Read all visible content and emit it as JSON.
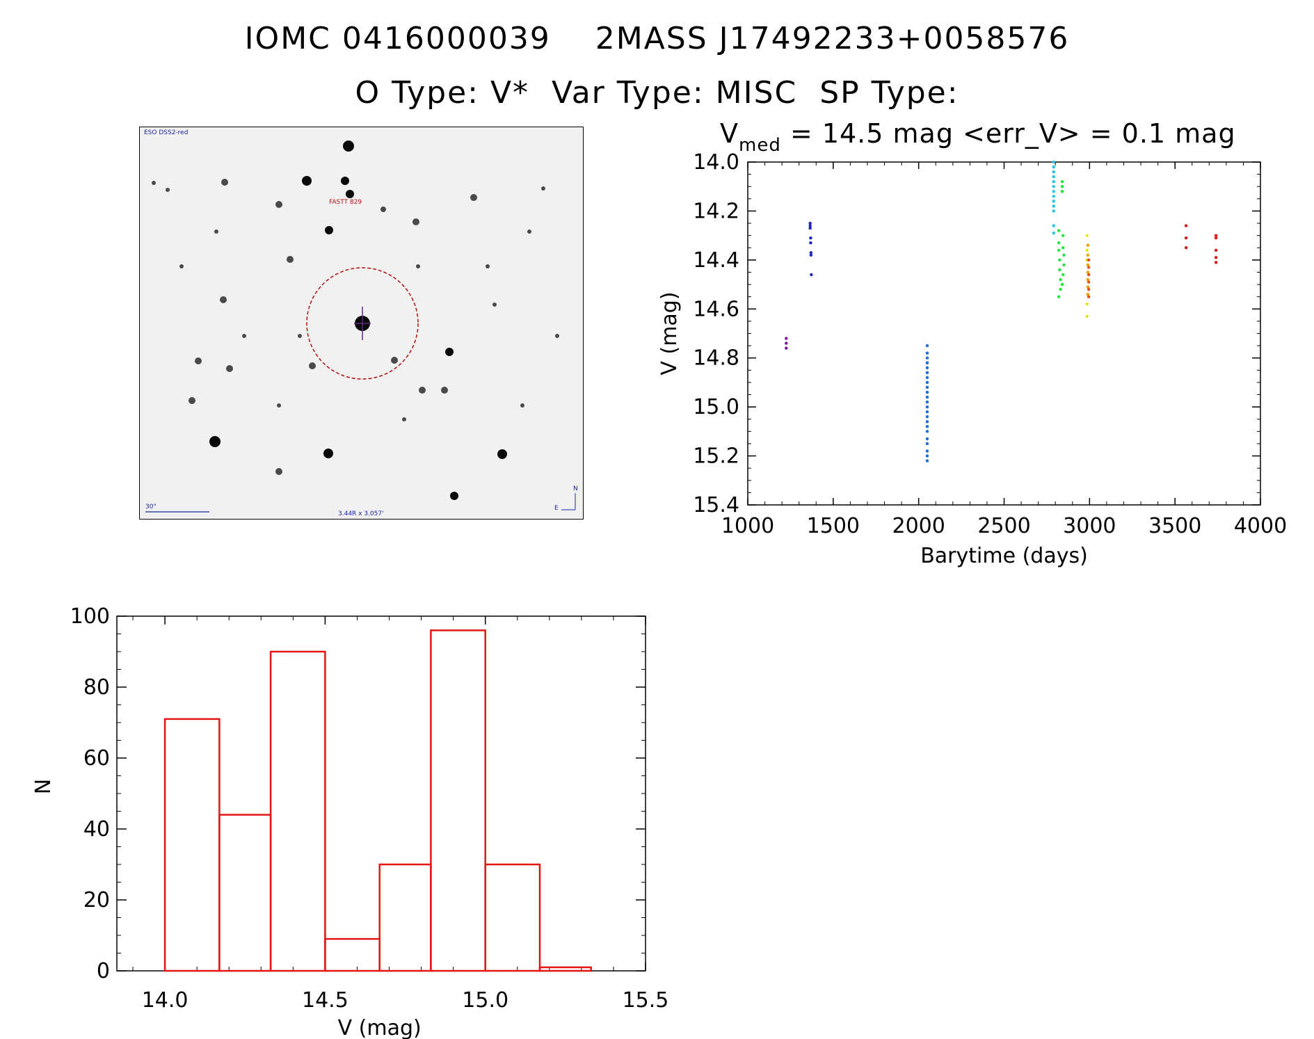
{
  "header": {
    "line1": "IOMC 0416000039    2MASS J17492233+0058576",
    "line2": "O Type: V*  Var Type: MISC  SP Type:"
  },
  "finder": {
    "survey_label": "ESO DSS2-red",
    "target_label": "FASTT 829",
    "scale_label": "30\"",
    "coords_label": "3.44R x 3.057'",
    "north_label": "N",
    "east_label": "E"
  },
  "lightcurve_header": {
    "v_prefix": "V",
    "v_subscript": "med",
    "v_rest": " = 14.5 mag <err_V> = 0.1 mag"
  },
  "chart_data": [
    {
      "type": "scatter",
      "xlabel": "Barytime (days)",
      "ylabel": "V (mag)",
      "xlim": [
        1000,
        4000
      ],
      "ylim": [
        15.4,
        14.0
      ],
      "y_inverted": true,
      "xticks": [
        "1000",
        "1500",
        "2000",
        "2500",
        "3000",
        "3500",
        "4000"
      ],
      "yticks": [
        "14.0",
        "14.2",
        "14.4",
        "14.6",
        "14.8",
        "15.0",
        "15.2",
        "15.4"
      ],
      "groups": [
        {
          "color": "#7a1a9a",
          "points": [
            [
              1225,
              14.72
            ],
            [
              1225,
              14.74
            ],
            [
              1225,
              14.76
            ]
          ]
        },
        {
          "color": "#1a24c8",
          "points": [
            [
              1365,
              14.25
            ],
            [
              1365,
              14.26
            ],
            [
              1365,
              14.27
            ],
            [
              1368,
              14.31
            ],
            [
              1368,
              14.33
            ],
            [
              1370,
              14.37
            ],
            [
              1370,
              14.38
            ],
            [
              1372,
              14.46
            ]
          ]
        },
        {
          "color": "#1a6ed8",
          "points": [
            [
              2050,
              14.75
            ],
            [
              2050,
              14.78
            ],
            [
              2050,
              14.8
            ],
            [
              2050,
              14.82
            ],
            [
              2050,
              14.84
            ],
            [
              2050,
              14.86
            ],
            [
              2050,
              14.88
            ],
            [
              2050,
              14.9
            ],
            [
              2050,
              14.92
            ],
            [
              2050,
              14.94
            ],
            [
              2050,
              14.96
            ],
            [
              2050,
              14.98
            ],
            [
              2050,
              15.0
            ],
            [
              2050,
              15.02
            ],
            [
              2050,
              15.04
            ],
            [
              2050,
              15.06
            ],
            [
              2050,
              15.08
            ],
            [
              2050,
              15.1
            ],
            [
              2050,
              15.13
            ],
            [
              2050,
              15.15
            ],
            [
              2050,
              15.18
            ],
            [
              2050,
              15.2
            ],
            [
              2050,
              15.22
            ]
          ]
        },
        {
          "color": "#1ec8e6",
          "points": [
            [
              2790,
              14.0
            ],
            [
              2790,
              14.02
            ],
            [
              2790,
              14.04
            ],
            [
              2790,
              14.06
            ],
            [
              2790,
              14.08
            ],
            [
              2790,
              14.1
            ],
            [
              2790,
              14.12
            ],
            [
              2790,
              14.14
            ],
            [
              2790,
              14.16
            ],
            [
              2790,
              14.18
            ],
            [
              2790,
              14.2
            ],
            [
              2790,
              14.26
            ],
            [
              2790,
              14.29
            ]
          ]
        },
        {
          "color": "#1ee63c",
          "points": [
            [
              2840,
              14.08
            ],
            [
              2840,
              14.1
            ],
            [
              2840,
              14.12
            ],
            [
              2820,
              14.28
            ],
            [
              2820,
              14.33
            ],
            [
              2820,
              14.36
            ],
            [
              2825,
              14.4
            ],
            [
              2825,
              14.44
            ],
            [
              2830,
              14.48
            ],
            [
              2830,
              14.52
            ],
            [
              2820,
              14.55
            ],
            [
              2845,
              14.3
            ],
            [
              2845,
              14.35
            ],
            [
              2850,
              14.38
            ],
            [
              2850,
              14.42
            ],
            [
              2845,
              14.46
            ],
            [
              2840,
              14.5
            ]
          ]
        },
        {
          "color": "#e6e614",
          "points": [
            [
              2985,
              14.3
            ],
            [
              2985,
              14.36
            ],
            [
              2985,
              14.4
            ],
            [
              2985,
              14.58
            ],
            [
              2985,
              14.63
            ]
          ]
        },
        {
          "color": "#f0a000",
          "points": [
            [
              2990,
              14.34
            ],
            [
              2990,
              14.38
            ],
            [
              2990,
              14.42
            ],
            [
              2990,
              14.45
            ],
            [
              2990,
              14.48
            ],
            [
              2990,
              14.51
            ],
            [
              2990,
              14.54
            ]
          ]
        },
        {
          "color": "#e65014",
          "points": [
            [
              2995,
              14.4
            ],
            [
              2995,
              14.43
            ],
            [
              2995,
              14.46
            ],
            [
              2995,
              14.49
            ],
            [
              2995,
              14.52
            ],
            [
              2995,
              14.55
            ]
          ]
        },
        {
          "color": "#e61414",
          "points": [
            [
              3565,
              14.26
            ],
            [
              3565,
              14.31
            ],
            [
              3565,
              14.35
            ],
            [
              3740,
              14.3
            ],
            [
              3740,
              14.31
            ],
            [
              3740,
              14.36
            ],
            [
              3740,
              14.39
            ],
            [
              3740,
              14.41
            ]
          ]
        }
      ]
    },
    {
      "type": "bar",
      "xlabel": "V (mag)",
      "ylabel": "N",
      "xlim": [
        13.85,
        15.5
      ],
      "ylim": [
        0,
        100
      ],
      "xticks": [
        "14.0",
        "14.5",
        "15.0",
        "15.5"
      ],
      "yticks": [
        "0",
        "20",
        "40",
        "60",
        "80",
        "100"
      ],
      "bin_edges": [
        14.0,
        14.17,
        14.33,
        14.5,
        14.67,
        14.83,
        15.0,
        15.17,
        15.33
      ],
      "values": [
        71,
        44,
        90,
        9,
        30,
        96,
        30,
        1
      ],
      "bar_color": "#e61414"
    }
  ]
}
